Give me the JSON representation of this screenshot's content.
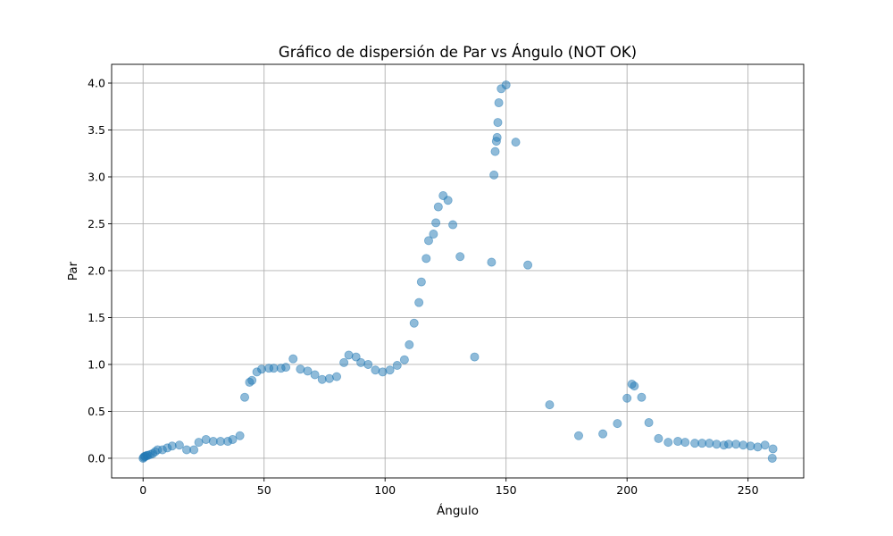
{
  "chart_data": {
    "type": "scatter",
    "title": "Gráfico de dispersión de Par vs Ángulo (NOT OK)",
    "xlabel": "Ángulo",
    "ylabel": "Par",
    "xlim": [
      -13,
      273
    ],
    "ylim": [
      -0.21,
      4.2
    ],
    "xticks": [
      0,
      50,
      100,
      150,
      200,
      250
    ],
    "xtick_labels": [
      "0",
      "50",
      "100",
      "150",
      "200",
      "250"
    ],
    "yticks": [
      0.0,
      0.5,
      1.0,
      1.5,
      2.0,
      2.5,
      3.0,
      3.5,
      4.0
    ],
    "ytick_labels": [
      "0.0",
      "0.5",
      "1.0",
      "1.5",
      "2.0",
      "2.5",
      "3.0",
      "3.5",
      "4.0"
    ],
    "grid": true,
    "marker_color": "#1f77b4",
    "marker_alpha": 0.5,
    "points": [
      [
        0,
        0.0
      ],
      [
        0.3,
        0.01
      ],
      [
        0.6,
        0.02
      ],
      [
        1,
        0.02
      ],
      [
        1.5,
        0.03
      ],
      [
        2,
        0.03
      ],
      [
        3,
        0.04
      ],
      [
        4,
        0.05
      ],
      [
        5,
        0.07
      ],
      [
        6,
        0.09
      ],
      [
        8,
        0.09
      ],
      [
        10,
        0.11
      ],
      [
        12,
        0.13
      ],
      [
        15,
        0.14
      ],
      [
        18,
        0.09
      ],
      [
        21,
        0.09
      ],
      [
        23,
        0.17
      ],
      [
        26,
        0.2
      ],
      [
        29,
        0.18
      ],
      [
        32,
        0.18
      ],
      [
        35,
        0.18
      ],
      [
        37,
        0.2
      ],
      [
        40,
        0.24
      ],
      [
        42,
        0.65
      ],
      [
        44,
        0.81
      ],
      [
        45,
        0.83
      ],
      [
        47,
        0.92
      ],
      [
        49,
        0.95
      ],
      [
        52,
        0.96
      ],
      [
        54,
        0.96
      ],
      [
        57,
        0.96
      ],
      [
        59,
        0.97
      ],
      [
        62,
        1.06
      ],
      [
        65,
        0.95
      ],
      [
        68,
        0.93
      ],
      [
        71,
        0.89
      ],
      [
        74,
        0.84
      ],
      [
        77,
        0.85
      ],
      [
        80,
        0.87
      ],
      [
        83,
        1.02
      ],
      [
        85,
        1.1
      ],
      [
        88,
        1.08
      ],
      [
        90,
        1.02
      ],
      [
        93,
        1.0
      ],
      [
        96,
        0.94
      ],
      [
        99,
        0.92
      ],
      [
        102,
        0.94
      ],
      [
        105,
        0.99
      ],
      [
        108,
        1.05
      ],
      [
        110,
        1.21
      ],
      [
        112,
        1.44
      ],
      [
        114,
        1.66
      ],
      [
        115,
        1.88
      ],
      [
        117,
        2.13
      ],
      [
        118,
        2.32
      ],
      [
        120,
        2.39
      ],
      [
        121,
        2.51
      ],
      [
        122,
        2.68
      ],
      [
        124,
        2.8
      ],
      [
        126,
        2.75
      ],
      [
        128,
        2.49
      ],
      [
        131,
        2.15
      ],
      [
        137,
        1.08
      ],
      [
        144,
        2.09
      ],
      [
        145,
        3.02
      ],
      [
        145.5,
        3.27
      ],
      [
        146,
        3.38
      ],
      [
        146.3,
        3.42
      ],
      [
        146.6,
        3.58
      ],
      [
        147,
        3.79
      ],
      [
        148,
        3.94
      ],
      [
        150,
        3.98
      ],
      [
        154,
        3.37
      ],
      [
        159,
        2.06
      ],
      [
        168,
        0.57
      ],
      [
        180,
        0.24
      ],
      [
        190,
        0.26
      ],
      [
        196,
        0.37
      ],
      [
        200,
        0.64
      ],
      [
        202,
        0.79
      ],
      [
        203,
        0.77
      ],
      [
        206,
        0.65
      ],
      [
        209,
        0.38
      ],
      [
        213,
        0.21
      ],
      [
        217,
        0.17
      ],
      [
        221,
        0.18
      ],
      [
        224,
        0.17
      ],
      [
        228,
        0.16
      ],
      [
        231,
        0.16
      ],
      [
        234,
        0.16
      ],
      [
        237,
        0.15
      ],
      [
        240,
        0.14
      ],
      [
        242,
        0.15
      ],
      [
        245,
        0.15
      ],
      [
        248,
        0.14
      ],
      [
        251,
        0.13
      ],
      [
        254,
        0.12
      ],
      [
        257,
        0.14
      ],
      [
        260,
        0.0
      ],
      [
        260.3,
        0.1
      ]
    ]
  }
}
